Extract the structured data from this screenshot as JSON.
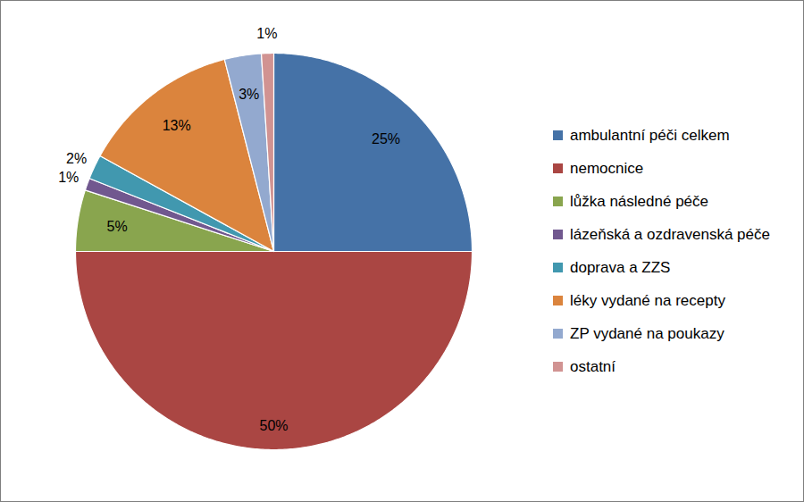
{
  "chart_data": {
    "type": "pie",
    "categories": [
      "ambulantní péči celkem",
      "nemocnice",
      "lůžka následné péče",
      "lázeňská a ozdravenská péče",
      "doprava a ZZS",
      "léky vydané na recepty",
      "ZP vydané na poukazy",
      "ostatní"
    ],
    "values": [
      25,
      50,
      5,
      1,
      2,
      13,
      3,
      1
    ],
    "value_labels": [
      "25%",
      "50%",
      "5%",
      "1%",
      "2%",
      "13%",
      "3%",
      "1%"
    ],
    "colors": [
      "#4572a7",
      "#aa4643",
      "#89a54e",
      "#71588f",
      "#4198af",
      "#db843d",
      "#93a9cf",
      "#d19392"
    ],
    "data_labels": true,
    "legend": "right"
  }
}
